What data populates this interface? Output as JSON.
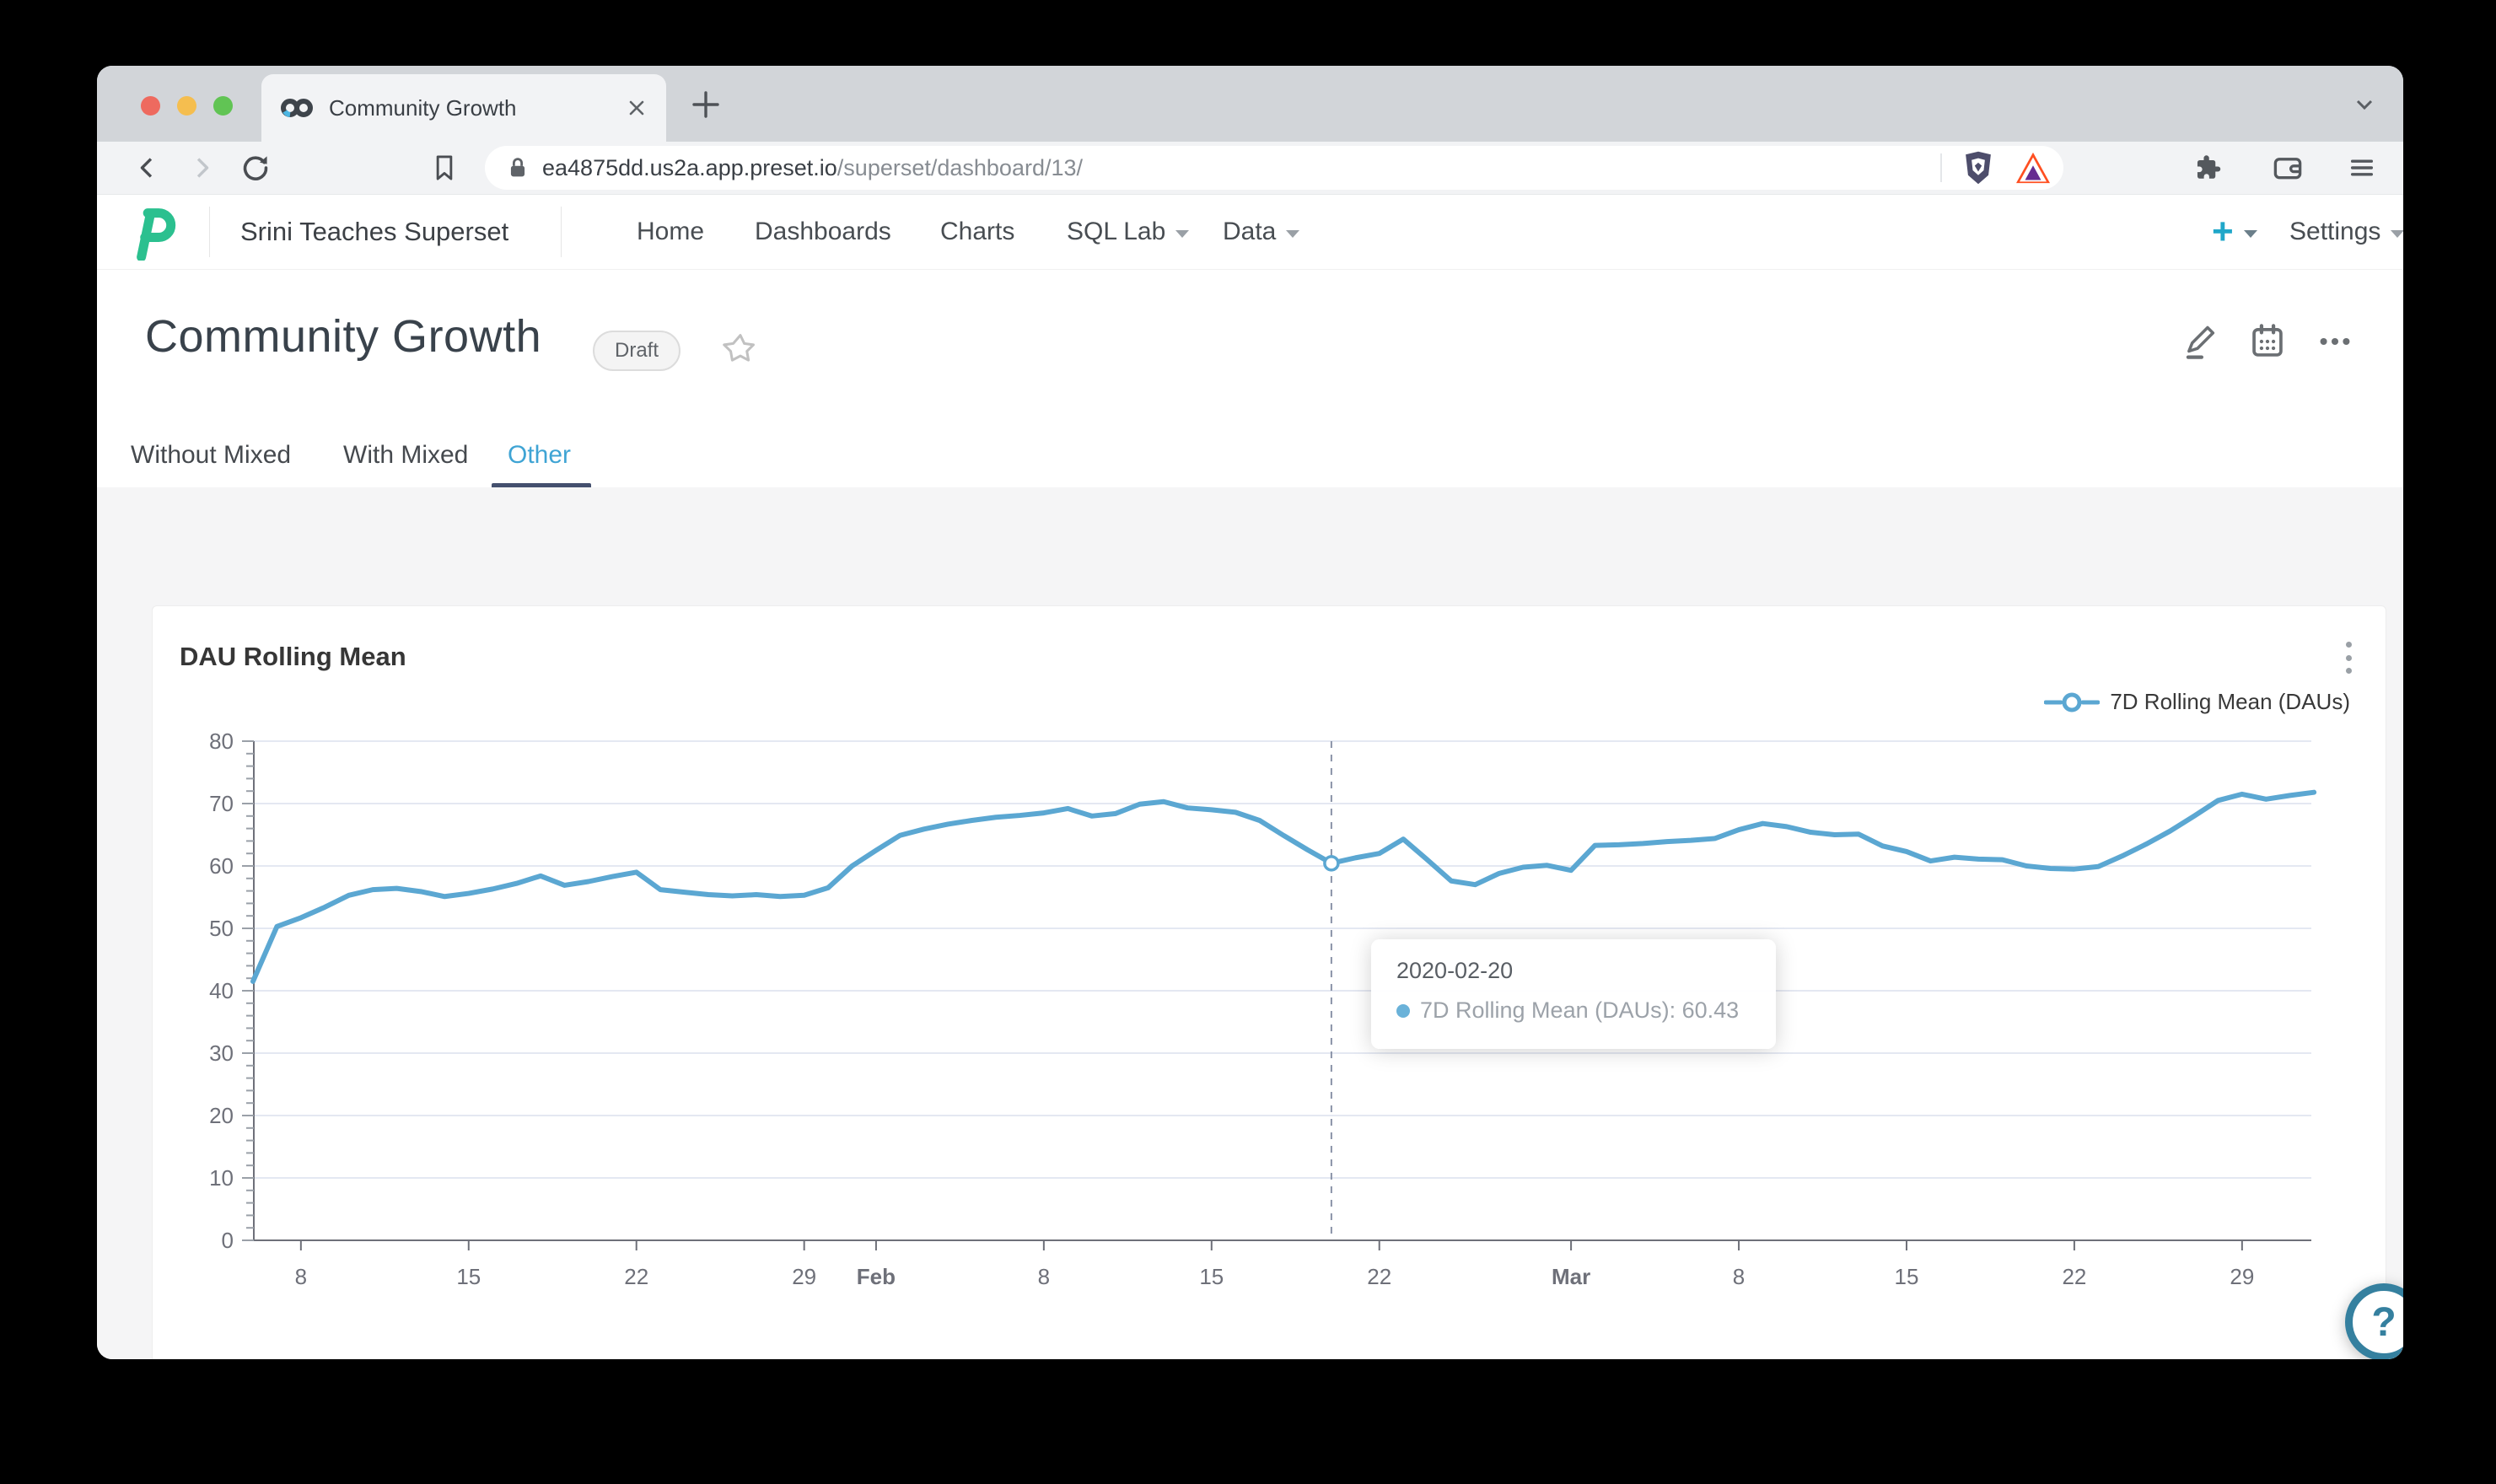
{
  "browser": {
    "tab": {
      "title": "Community Growth"
    },
    "url": {
      "host": "ea4875dd.us2a.app.preset.io",
      "path": "/superset/dashboard/13/"
    }
  },
  "nav": {
    "brand": "Srini Teaches Superset",
    "items": [
      {
        "label": "Home",
        "caret": false
      },
      {
        "label": "Dashboards",
        "caret": false
      },
      {
        "label": "Charts",
        "caret": false
      },
      {
        "label": "SQL Lab",
        "caret": true
      },
      {
        "label": "Data",
        "caret": true
      }
    ],
    "new_button_label": "+",
    "settings_label": "Settings"
  },
  "page": {
    "title": "Community Growth",
    "badge": "Draft",
    "tabs": [
      {
        "label": "Without Mixed"
      },
      {
        "label": "With Mixed"
      },
      {
        "label": "Other"
      }
    ],
    "active_tab": "Other"
  },
  "card": {
    "title": "DAU Rolling Mean",
    "legend": "7D Rolling Mean (DAUs)"
  },
  "tooltip": {
    "date": "2020-02-20",
    "line": "7D Rolling Mean (DAUs): 60.43"
  },
  "help_label": "?",
  "colors": {
    "line": "#5BA7D2",
    "accent": "#20A7C9",
    "tab_active": "#3FA4D4",
    "ink_bar": "#44506E",
    "gridline": "#E4E8F2",
    "axis": "#6E7079"
  },
  "chart_data": {
    "type": "line",
    "title": "DAU Rolling Mean",
    "ylabel": "",
    "xlabel": "",
    "ylim": [
      0,
      80
    ],
    "y_ticks": [
      0,
      10,
      20,
      30,
      40,
      50,
      60,
      70,
      80
    ],
    "grid": true,
    "legend_position": "top-right",
    "series": [
      {
        "name": "7D Rolling Mean (DAUs)",
        "start_date": "2020-01-06",
        "interval": "daily",
        "values": [
          41.5,
          50.3,
          51.7,
          53.4,
          55.3,
          56.2,
          56.4,
          55.9,
          55.1,
          55.6,
          56.3,
          57.2,
          58.4,
          56.9,
          57.5,
          58.3,
          59.0,
          56.2,
          55.8,
          55.4,
          55.2,
          55.4,
          55.1,
          55.3,
          56.5,
          60.0,
          62.5,
          64.9,
          65.9,
          66.7,
          67.3,
          67.8,
          68.1,
          68.5,
          69.2,
          68.0,
          68.4,
          69.9,
          70.3,
          69.3,
          69.0,
          68.6,
          67.3,
          64.9,
          62.6,
          60.43,
          61.3,
          62.0,
          64.3,
          61.0,
          57.6,
          57.0,
          58.8,
          59.8,
          60.1,
          59.3,
          63.3,
          63.4,
          63.6,
          63.9,
          64.1,
          64.4,
          65.8,
          66.8,
          66.3,
          65.4,
          65.0,
          65.1,
          63.2,
          62.3,
          60.8,
          61.4,
          61.1,
          61.0,
          60.0,
          59.6,
          59.5,
          59.9,
          61.6,
          63.5,
          65.6,
          68.0,
          70.5,
          71.5,
          70.7,
          71.3,
          71.8
        ]
      }
    ],
    "x_ticks": [
      {
        "index": 2,
        "label": "8",
        "bold": false
      },
      {
        "index": 9,
        "label": "15",
        "bold": false
      },
      {
        "index": 16,
        "label": "22",
        "bold": false
      },
      {
        "index": 23,
        "label": "29",
        "bold": false
      },
      {
        "index": 26,
        "label": "Feb",
        "bold": true
      },
      {
        "index": 33,
        "label": "8",
        "bold": false
      },
      {
        "index": 40,
        "label": "15",
        "bold": false
      },
      {
        "index": 47,
        "label": "22",
        "bold": false
      },
      {
        "index": 55,
        "label": "Mar",
        "bold": true
      },
      {
        "index": 62,
        "label": "8",
        "bold": false
      },
      {
        "index": 69,
        "label": "15",
        "bold": false
      },
      {
        "index": 76,
        "label": "22",
        "bold": false
      },
      {
        "index": 83,
        "label": "29",
        "bold": false
      }
    ],
    "highlight": {
      "index": 45,
      "date": "2020-02-20",
      "value": 60.43
    }
  }
}
